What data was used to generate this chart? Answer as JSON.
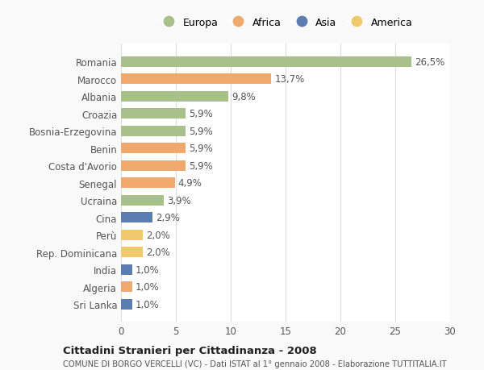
{
  "categories": [
    "Romania",
    "Marocco",
    "Albania",
    "Croazia",
    "Bosnia-Erzegovina",
    "Benin",
    "Costa d'Avorio",
    "Senegal",
    "Ucraina",
    "Cina",
    "Perù",
    "Rep. Dominicana",
    "India",
    "Algeria",
    "Sri Lanka"
  ],
  "values": [
    26.5,
    13.7,
    9.8,
    5.9,
    5.9,
    5.9,
    5.9,
    4.9,
    3.9,
    2.9,
    2.0,
    2.0,
    1.0,
    1.0,
    1.0
  ],
  "labels": [
    "26,5%",
    "13,7%",
    "9,8%",
    "5,9%",
    "5,9%",
    "5,9%",
    "5,9%",
    "4,9%",
    "3,9%",
    "2,9%",
    "2,0%",
    "2,0%",
    "1,0%",
    "1,0%",
    "1,0%"
  ],
  "continent": [
    "Europa",
    "Africa",
    "Europa",
    "Europa",
    "Europa",
    "Africa",
    "Africa",
    "Africa",
    "Europa",
    "Asia",
    "America",
    "America",
    "Asia",
    "Africa",
    "Asia"
  ],
  "colors": {
    "Europa": "#a8c08a",
    "Africa": "#f0a96c",
    "Asia": "#5b7db1",
    "America": "#f0c96c"
  },
  "legend_entries": [
    "Europa",
    "Africa",
    "Asia",
    "America"
  ],
  "xlim": [
    0,
    30
  ],
  "xticks": [
    0,
    5,
    10,
    15,
    20,
    25,
    30
  ],
  "title": "Cittadini Stranieri per Cittadinanza - 2008",
  "subtitle": "COMUNE DI BORGO VERCELLI (VC) - Dati ISTAT al 1° gennaio 2008 - Elaborazione TUTTITALIA.IT",
  "background_color": "#f9f9f9",
  "bar_background": "#ffffff",
  "grid_color": "#dddddd"
}
